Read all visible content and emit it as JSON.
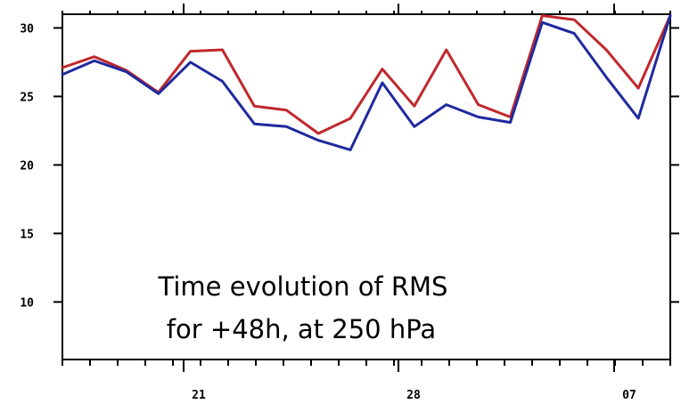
{
  "chart_data": {
    "type": "line",
    "annotation": [
      "Time evolution of RMS",
      "for +48h, at 250 hPa"
    ],
    "x_tick_labels": [
      "21",
      "28",
      "07"
    ],
    "ylim": [
      5.8,
      31
    ],
    "y_ticks": [
      10,
      15,
      20,
      25,
      30
    ],
    "grid": false,
    "series": [
      {
        "color": "#c0282c",
        "values": [
          27.1,
          27.9,
          26.9,
          25.3,
          28.3,
          28.4,
          24.3,
          24.0,
          22.3,
          23.4,
          27.0,
          24.3,
          28.4,
          24.4,
          23.5,
          30.9,
          30.6,
          28.4,
          25.6,
          30.9
        ]
      },
      {
        "color": "#1f2a9e",
        "values": [
          26.6,
          27.6,
          26.8,
          25.2,
          27.5,
          26.1,
          23.0,
          22.8,
          21.8,
          21.1,
          26.0,
          22.8,
          24.4,
          23.5,
          23.1,
          30.4,
          29.6,
          26.4,
          23.4,
          30.9
        ]
      }
    ]
  }
}
